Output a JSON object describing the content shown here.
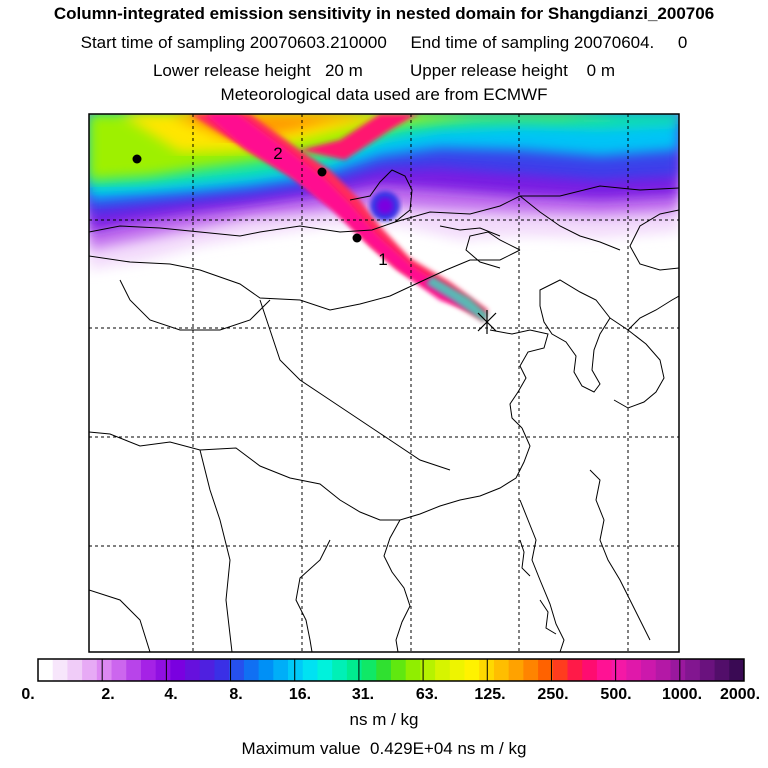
{
  "title": "Column-integrated emission sensitivity in nested domain for Shangdianzi_200706",
  "line2": "Start time of sampling 20070603.210000     End time of sampling 20070604.     0",
  "line3": "Lower release height   20 m          Upper release height    0 m",
  "line4": "Meteorological data used are from ECMWF",
  "markers": [
    {
      "label": "1"
    },
    {
      "label": "2"
    }
  ],
  "colorbar": {
    "labels": [
      "0.",
      "2.",
      "4.",
      "8.",
      "16.",
      "31.",
      "63.",
      "125.",
      "250.",
      "500.",
      "1000.",
      "2000."
    ],
    "colors": [
      "#ffffff",
      "#f7e6fb",
      "#f0ccf8",
      "#e7aaf5",
      "#dd88f2",
      "#cc66ee",
      "#b844ea",
      "#a522e6",
      "#9010e2",
      "#7a00e0",
      "#6610dd",
      "#4f20e0",
      "#3a30e6",
      "#2650ee",
      "#1070f3",
      "#0090f6",
      "#00aef8",
      "#00caf8",
      "#00e2f2",
      "#00f2dc",
      "#00f0b6",
      "#00ec90",
      "#10e866",
      "#30e030",
      "#60e810",
      "#90ee00",
      "#b6f200",
      "#d6f400",
      "#eef400",
      "#fff200",
      "#ffd800",
      "#ffbe00",
      "#ffa200",
      "#ff8400",
      "#ff6200",
      "#ff3c1e",
      "#ff1a48",
      "#ff0c70",
      "#ff1294",
      "#f418a6",
      "#e018aa",
      "#cc18ac",
      "#b418a6",
      "#9a189e",
      "#821690",
      "#6a127e",
      "#520e6a",
      "#3a0a54"
    ],
    "units": "ns m / kg"
  },
  "max_value": "Maximum value  0.429E+04 ns m / kg"
}
